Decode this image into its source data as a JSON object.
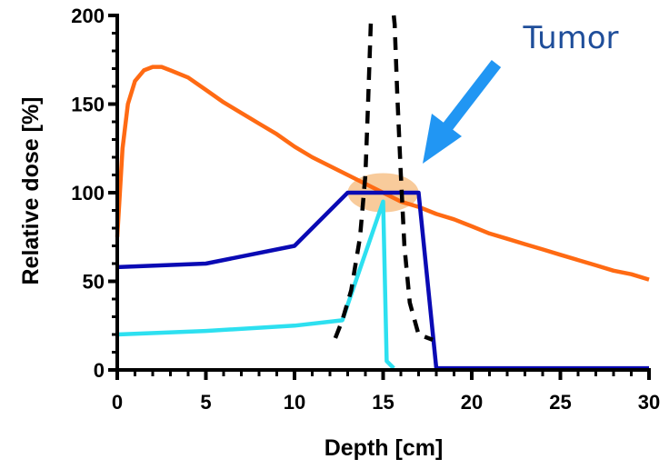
{
  "chart_data": {
    "type": "line",
    "title": "",
    "xlabel": "Depth [cm]",
    "ylabel": "Relative dose [%]",
    "xlim": [
      0,
      30
    ],
    "ylim": [
      0,
      200
    ],
    "x_ticks": [
      0,
      5,
      10,
      15,
      20,
      25,
      30
    ],
    "y_ticks": [
      0,
      50,
      100,
      150,
      200
    ],
    "grid": false,
    "legend": "none",
    "annotation": {
      "text": "Tumor",
      "color": "#1f4e9a",
      "arrow_color": "#2196f3"
    },
    "tumor_region": {
      "x_center": 15,
      "y_center": 100,
      "x_halfwidth": 2,
      "y_halfwidth": 11,
      "color": "#f5b97a"
    },
    "series": [
      {
        "color": "#ff6a13",
        "style": "solid",
        "points": [
          [
            0,
            75
          ],
          [
            0.3,
            125
          ],
          [
            0.6,
            150
          ],
          [
            1,
            163
          ],
          [
            1.5,
            169
          ],
          [
            2,
            171
          ],
          [
            2.5,
            171
          ],
          [
            3,
            169
          ],
          [
            4,
            165
          ],
          [
            5,
            158
          ],
          [
            6,
            151
          ],
          [
            7,
            145
          ],
          [
            8,
            139
          ],
          [
            9,
            133
          ],
          [
            10,
            126
          ],
          [
            11,
            120
          ],
          [
            12,
            115
          ],
          [
            13,
            110
          ],
          [
            14,
            105
          ],
          [
            15,
            100
          ],
          [
            16,
            95
          ],
          [
            17,
            92
          ],
          [
            18,
            88
          ],
          [
            19,
            85
          ],
          [
            20,
            81
          ],
          [
            21,
            77
          ],
          [
            22,
            74
          ],
          [
            23,
            71
          ],
          [
            24,
            68
          ],
          [
            25,
            65
          ],
          [
            26,
            62
          ],
          [
            27,
            59
          ],
          [
            28,
            56
          ],
          [
            29,
            54
          ],
          [
            30,
            51
          ]
        ]
      },
      {
        "color": "#0a0ab4",
        "style": "solid",
        "points": [
          [
            0,
            58
          ],
          [
            5,
            60
          ],
          [
            10,
            70
          ],
          [
            13,
            100
          ],
          [
            17,
            100
          ],
          [
            18,
            1
          ],
          [
            30,
            1
          ]
        ]
      },
      {
        "color": "#2de0f0",
        "style": "solid",
        "points": [
          [
            0,
            20
          ],
          [
            5,
            22
          ],
          [
            10,
            25
          ],
          [
            12.7,
            28
          ],
          [
            15,
            95
          ],
          [
            15.2,
            5
          ],
          [
            15.6,
            1
          ]
        ]
      },
      {
        "color": "#000000",
        "style": "dashed",
        "points": [
          [
            12.3,
            18
          ],
          [
            12.7,
            28
          ],
          [
            13.2,
            45
          ],
          [
            13.7,
            75
          ],
          [
            14,
            110
          ],
          [
            14.15,
            150
          ],
          [
            14.3,
            195
          ],
          [
            14.35,
            200
          ]
        ]
      },
      {
        "color": "#000000",
        "style": "dashed",
        "points": [
          [
            15.6,
            200
          ],
          [
            15.65,
            195
          ],
          [
            15.8,
            155
          ],
          [
            16,
            110
          ],
          [
            16.2,
            70
          ],
          [
            16.5,
            38
          ],
          [
            17,
            20
          ],
          [
            17.8,
            17
          ]
        ]
      }
    ]
  }
}
